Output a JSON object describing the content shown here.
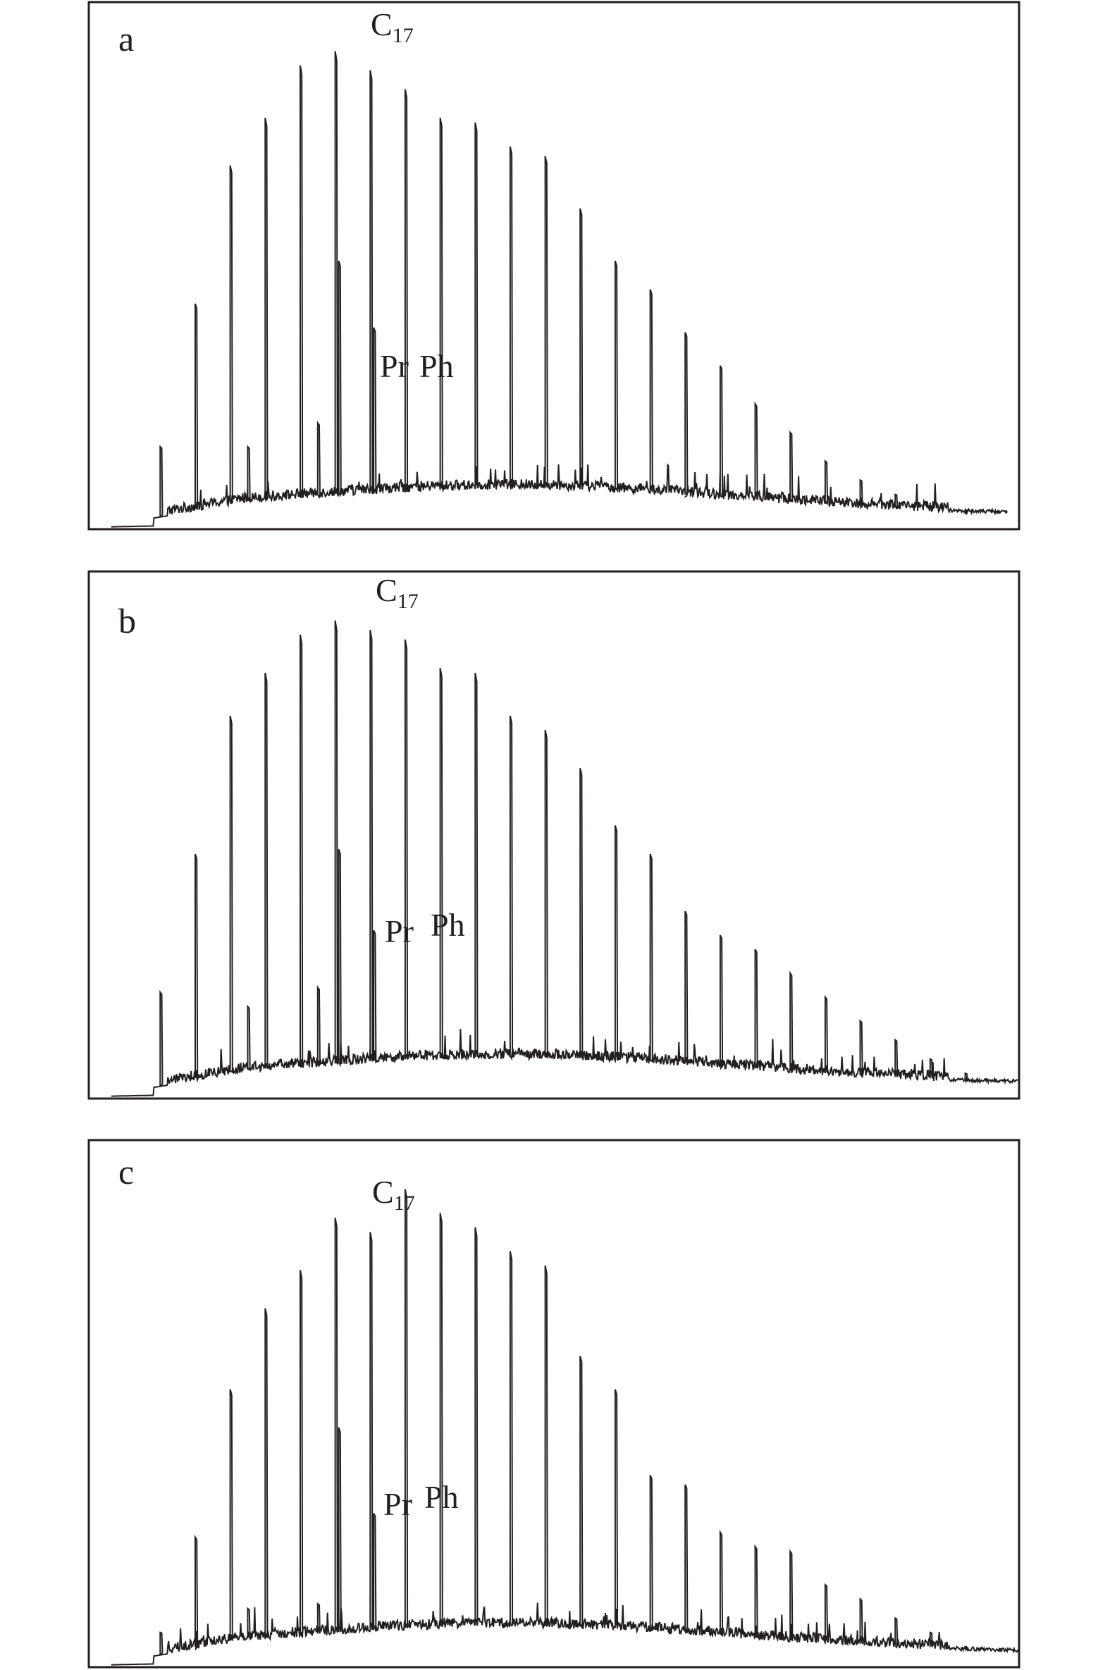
{
  "chart_data": [
    {
      "type": "line",
      "panel_label": "a",
      "annotations": [
        {
          "main": "C",
          "sub": "17",
          "at": 17.0
        },
        {
          "main": "Pr",
          "sub": "",
          "at": 17.1
        },
        {
          "main": "Ph",
          "sub": "",
          "at": 18.1
        }
      ],
      "peaks": [
        {
          "x": 12.0,
          "y": 17
        },
        {
          "x": 13.0,
          "y": 47
        },
        {
          "x": 14.0,
          "y": 76
        },
        {
          "x": 15.0,
          "y": 86
        },
        {
          "x": 16.0,
          "y": 97
        },
        {
          "x": 17.0,
          "y": 100
        },
        {
          "x": 18.0,
          "y": 96
        },
        {
          "x": 19.0,
          "y": 92
        },
        {
          "x": 20.0,
          "y": 86
        },
        {
          "x": 21.0,
          "y": 85
        },
        {
          "x": 22.0,
          "y": 80
        },
        {
          "x": 23.0,
          "y": 78
        },
        {
          "x": 24.0,
          "y": 67
        },
        {
          "x": 25.0,
          "y": 56
        },
        {
          "x": 26.0,
          "y": 50
        },
        {
          "x": 27.0,
          "y": 41
        },
        {
          "x": 28.0,
          "y": 34
        },
        {
          "x": 29.0,
          "y": 26
        },
        {
          "x": 30.0,
          "y": 20
        },
        {
          "x": 31.0,
          "y": 14
        },
        {
          "x": 32.0,
          "y": 10
        },
        {
          "x": 33.0,
          "y": 7
        },
        {
          "x": 34.0,
          "y": 4
        },
        {
          "x": 35.0,
          "y": 3
        },
        {
          "x": 14.5,
          "y": 17
        },
        {
          "x": 16.5,
          "y": 22
        },
        {
          "x": 17.1,
          "y": 56
        },
        {
          "x": 18.1,
          "y": 42
        }
      ],
      "xlim": [
        10,
        36.5
      ],
      "ylim": [
        0,
        110
      ],
      "start_x": 10.6,
      "end_x": 36.2
    },
    {
      "type": "line",
      "panel_label": "b",
      "annotations": [
        {
          "main": "C",
          "sub": "17",
          "at": 17.0
        },
        {
          "main": "Pr",
          "sub": "",
          "at": 17.1
        },
        {
          "main": "Ph",
          "sub": "",
          "at": 18.1
        }
      ],
      "peaks": [
        {
          "x": 12.0,
          "y": 22
        },
        {
          "x": 13.0,
          "y": 51
        },
        {
          "x": 14.0,
          "y": 80
        },
        {
          "x": 15.0,
          "y": 89
        },
        {
          "x": 16.0,
          "y": 97
        },
        {
          "x": 17.0,
          "y": 100
        },
        {
          "x": 18.0,
          "y": 98
        },
        {
          "x": 19.0,
          "y": 96
        },
        {
          "x": 20.0,
          "y": 90
        },
        {
          "x": 21.0,
          "y": 89
        },
        {
          "x": 22.0,
          "y": 80
        },
        {
          "x": 23.0,
          "y": 77
        },
        {
          "x": 24.0,
          "y": 69
        },
        {
          "x": 25.0,
          "y": 57
        },
        {
          "x": 26.0,
          "y": 51
        },
        {
          "x": 27.0,
          "y": 39
        },
        {
          "x": 28.0,
          "y": 34
        },
        {
          "x": 29.0,
          "y": 31
        },
        {
          "x": 30.0,
          "y": 26
        },
        {
          "x": 31.0,
          "y": 21
        },
        {
          "x": 32.0,
          "y": 16
        },
        {
          "x": 33.0,
          "y": 12
        },
        {
          "x": 34.0,
          "y": 8
        },
        {
          "x": 35.0,
          "y": 5
        },
        {
          "x": 14.5,
          "y": 19
        },
        {
          "x": 16.5,
          "y": 23
        },
        {
          "x": 17.1,
          "y": 52
        },
        {
          "x": 18.1,
          "y": 35
        }
      ],
      "xlim": [
        10,
        36.5
      ],
      "ylim": [
        0,
        110
      ],
      "start_x": 10.6,
      "end_x": 36.5
    },
    {
      "type": "line",
      "panel_label": "c",
      "annotations": [
        {
          "main": "C",
          "sub": "17",
          "at": 17.0
        },
        {
          "main": "Pr",
          "sub": "",
          "at": 17.1
        },
        {
          "main": "Ph",
          "sub": "",
          "at": 18.1
        }
      ],
      "peaks": [
        {
          "x": 12.0,
          "y": 7
        },
        {
          "x": 13.0,
          "y": 27
        },
        {
          "x": 14.0,
          "y": 58
        },
        {
          "x": 15.0,
          "y": 75
        },
        {
          "x": 16.0,
          "y": 83
        },
        {
          "x": 17.0,
          "y": 94
        },
        {
          "x": 18.0,
          "y": 91
        },
        {
          "x": 19.0,
          "y": 100
        },
        {
          "x": 20.0,
          "y": 95
        },
        {
          "x": 21.0,
          "y": 92
        },
        {
          "x": 22.0,
          "y": 87
        },
        {
          "x": 23.0,
          "y": 84
        },
        {
          "x": 24.0,
          "y": 65
        },
        {
          "x": 25.0,
          "y": 58
        },
        {
          "x": 26.0,
          "y": 40
        },
        {
          "x": 27.0,
          "y": 38
        },
        {
          "x": 28.0,
          "y": 28
        },
        {
          "x": 29.0,
          "y": 25
        },
        {
          "x": 30.0,
          "y": 24
        },
        {
          "x": 31.0,
          "y": 17
        },
        {
          "x": 32.0,
          "y": 14
        },
        {
          "x": 33.0,
          "y": 10
        },
        {
          "x": 34.0,
          "y": 7
        },
        {
          "x": 35.0,
          "y": 4
        },
        {
          "x": 14.5,
          "y": 12
        },
        {
          "x": 16.5,
          "y": 13
        },
        {
          "x": 17.1,
          "y": 50
        },
        {
          "x": 18.1,
          "y": 32
        }
      ],
      "xlim": [
        10,
        36.5
      ],
      "ylim": [
        0,
        110
      ],
      "start_x": 10.6,
      "end_x": 36.5
    }
  ]
}
